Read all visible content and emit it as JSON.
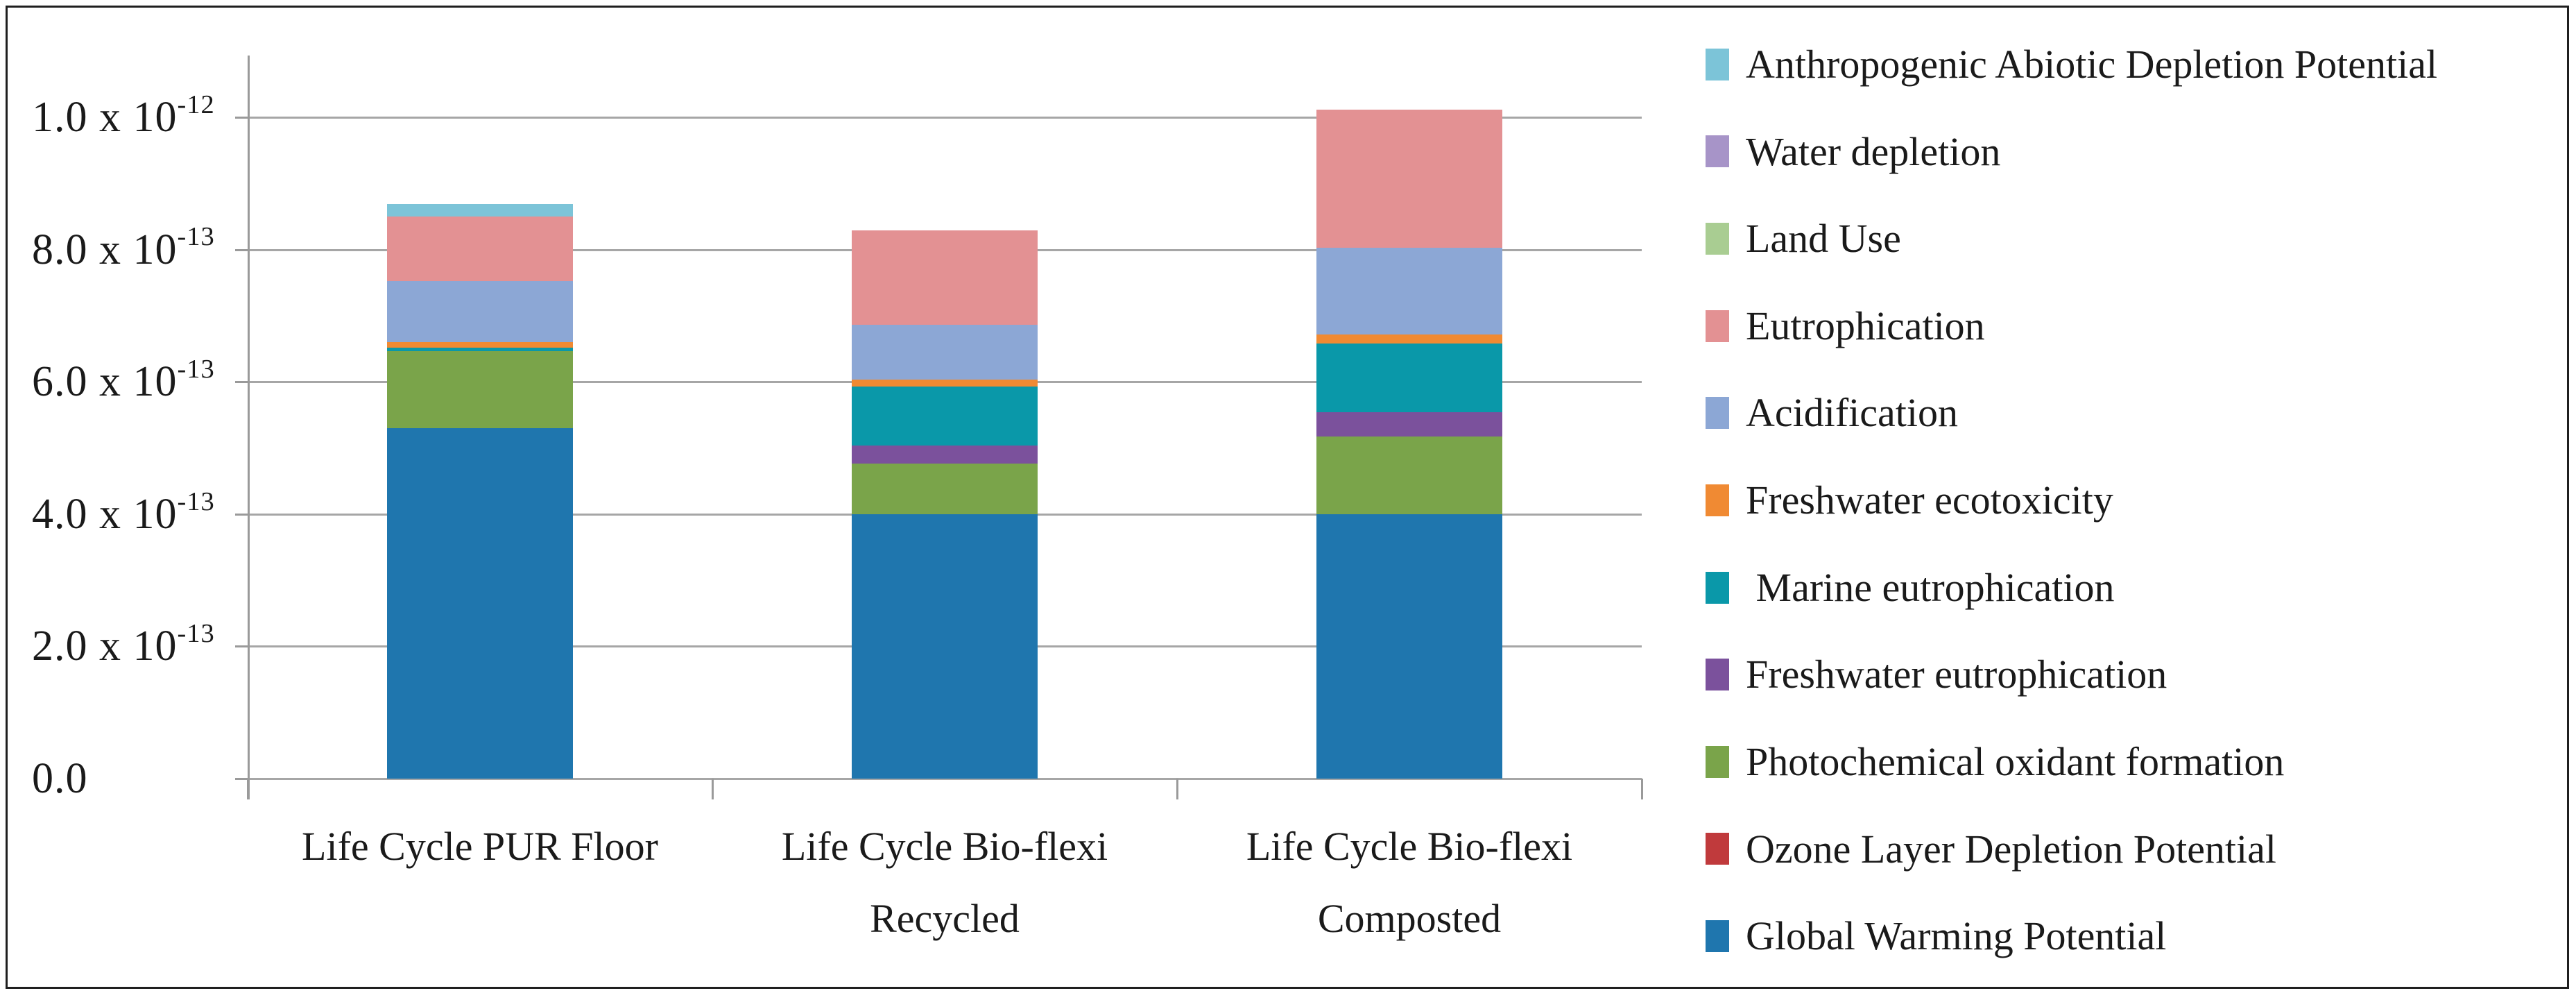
{
  "chart_data": {
    "type": "bar",
    "stacked": true,
    "title": "",
    "xlabel": "",
    "ylabel": "",
    "legend_position": "right",
    "grid": true,
    "categories": [
      "Life Cycle PUR Floor",
      "Life Cycle Bio-flexi Recycled",
      "Life Cycle Bio-flexi Composted"
    ],
    "series_note": "series listed in legend order (top to bottom); bars stack bottom-to-top in reverse of this order",
    "series": [
      {
        "name": "Anthropogenic Abiotic Depletion Potential",
        "color": "#7CC4D8",
        "values": [
          1.9e-14,
          0,
          0
        ]
      },
      {
        "name": "Water depletion",
        "color": "#A794C8",
        "values": [
          0,
          0,
          0
        ]
      },
      {
        "name": "Land Use",
        "color": "#A9CD92",
        "values": [
          0,
          0,
          0
        ]
      },
      {
        "name": "Eutrophication",
        "color": "#E39193",
        "values": [
          9.8e-14,
          1.43e-13,
          2.09e-13
        ]
      },
      {
        "name": "Acidification",
        "color": "#8CA7D5",
        "values": [
          9.2e-14,
          8.3e-14,
          1.31e-13
        ]
      },
      {
        "name": "Freshwater ecotoxicity",
        "color": "#F08A33",
        "values": [
          8e-15,
          1e-14,
          1.4e-14
        ]
      },
      {
        "name": " Marine eutrophication",
        "color": "#0A98A9",
        "values": [
          6e-15,
          8.9e-14,
          1.04e-13
        ]
      },
      {
        "name": "Freshwater eutrophication",
        "color": "#7B519C",
        "values": [
          0,
          2.8e-14,
          3.7e-14
        ]
      },
      {
        "name": "Photochemical oxidant formation",
        "color": "#7AA44A",
        "values": [
          1.16e-13,
          7.6e-14,
          1.17e-13
        ]
      },
      {
        "name": "Ozone Layer Depletion Potential",
        "color": "#C03A3C",
        "values": [
          0,
          0,
          0
        ]
      },
      {
        "name": "Global Warming Potential",
        "color": "#1F76AE",
        "values": [
          5.3e-13,
          4e-13,
          4e-13
        ]
      }
    ],
    "totals": [
      8.69e-13,
      8.29e-13,
      1.012e-12
    ],
    "y_axis": {
      "range": [
        0,
        1.09e-12
      ],
      "major_unit": 2e-13,
      "ticks": [
        {
          "base": "1.0 x 10",
          "exp": "-12",
          "value": 1e-12
        },
        {
          "base": "8.0 x 10",
          "exp": "-13",
          "value": 8e-13
        },
        {
          "base": "6.0 x 10",
          "exp": "-13",
          "value": 6e-13
        },
        {
          "base": "4.0 x 10",
          "exp": "-13",
          "value": 4e-13
        },
        {
          "base": "2.0 x 10",
          "exp": "-13",
          "value": 2e-13
        },
        {
          "base": "0.0",
          "exp": "",
          "value": 0
        }
      ]
    },
    "style_colors": {
      "gridline": "#a6a6a6",
      "axis": "#9a9a9a",
      "border": "#1f1f1f",
      "text": "#1a1a1a"
    }
  }
}
